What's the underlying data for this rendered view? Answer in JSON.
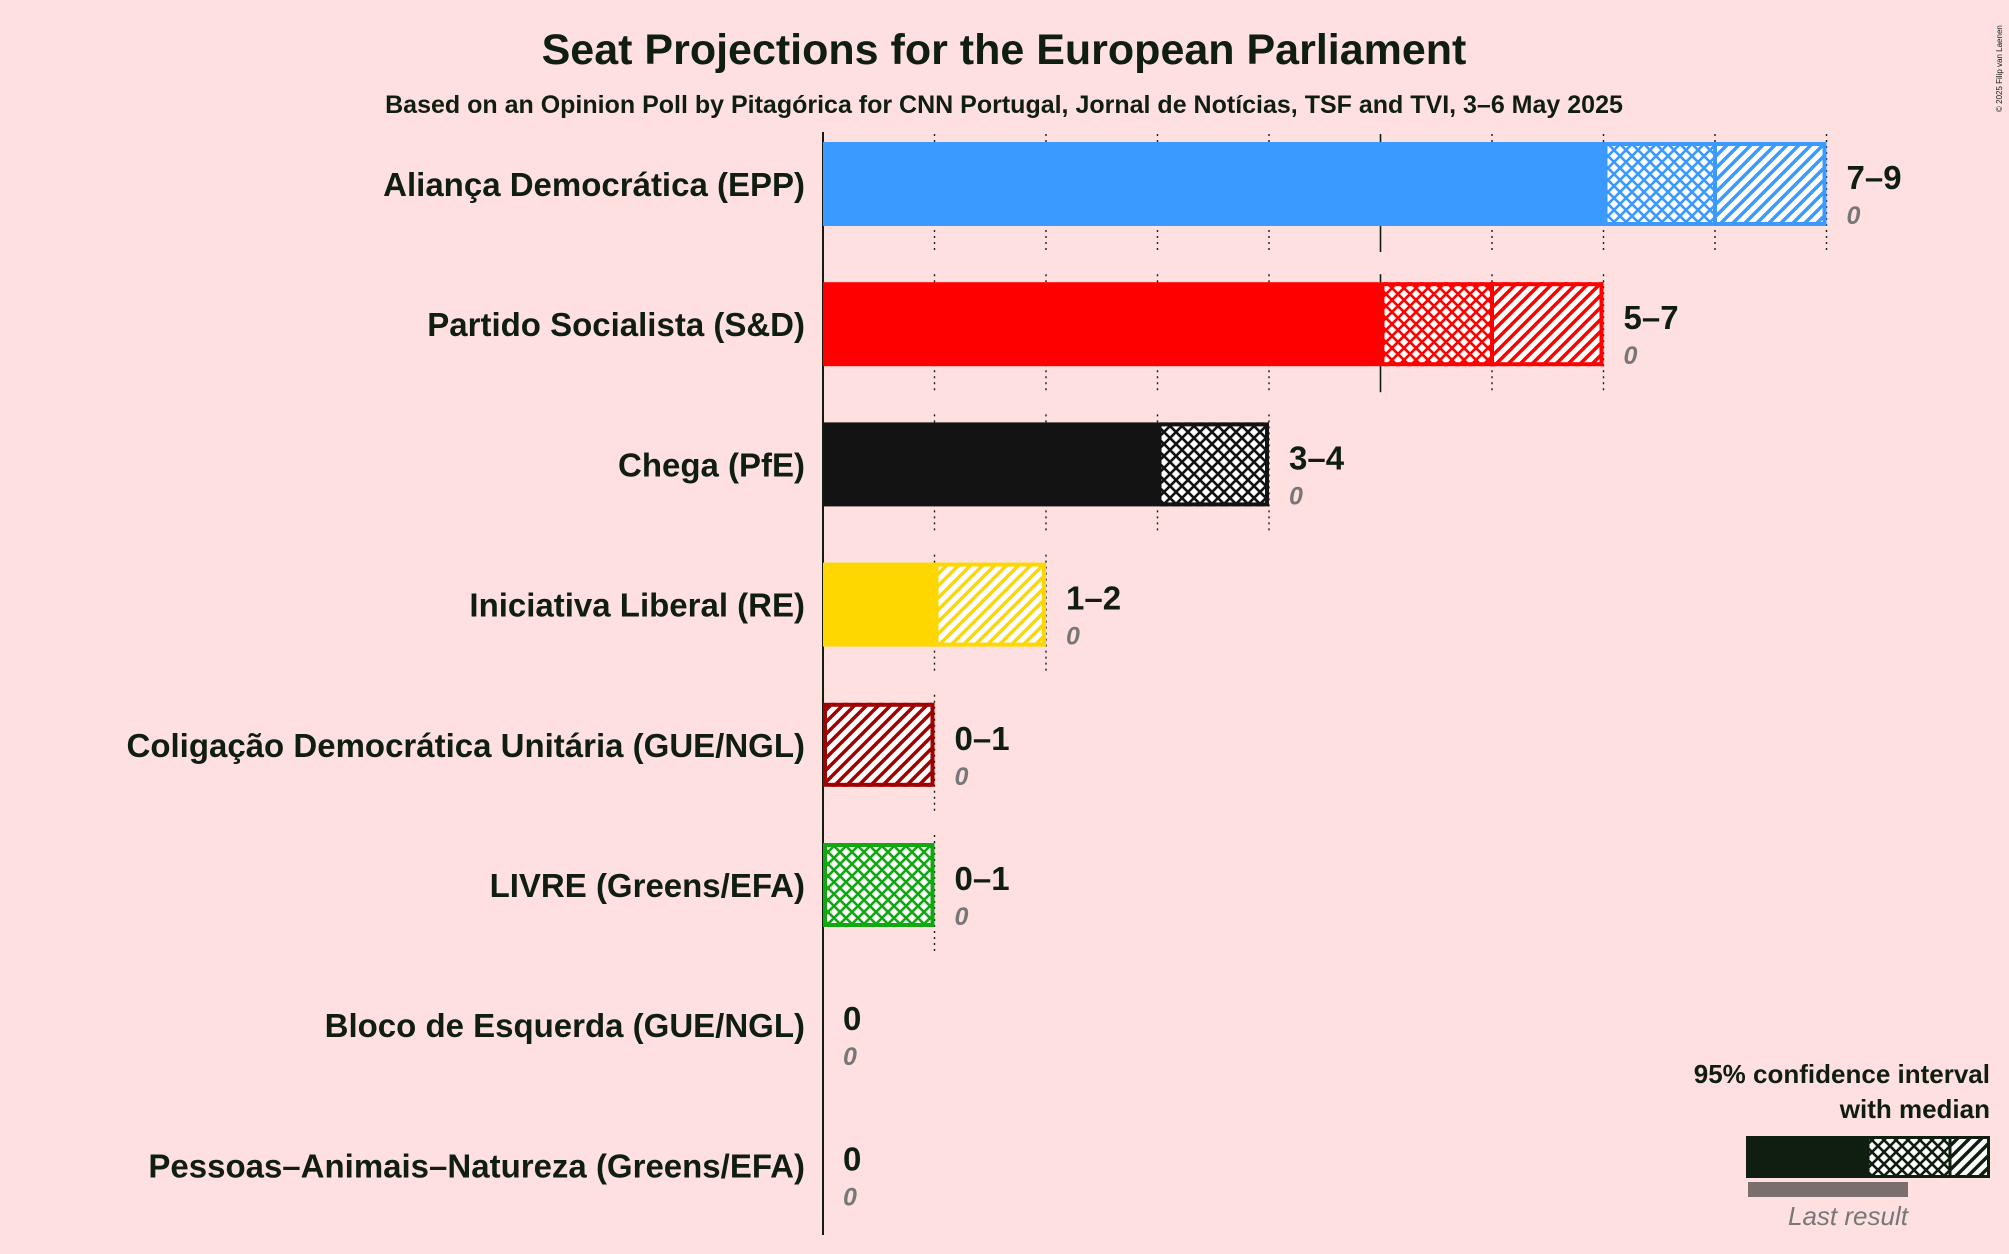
{
  "header": {
    "title": "Seat Projections for the European Parliament",
    "subtitle": "Based on an Opinion Poll by Pitagórica for CNN Portugal, Jornal de Notícias, TSF and TVI, 3–6 May 2025",
    "copyright": "© 2025 Filip van Laenen"
  },
  "legend": {
    "line1": "95% confidence interval",
    "line2": "with median",
    "last_result": "Last result",
    "color": "#0f1e0f"
  },
  "chart_data": {
    "type": "bar",
    "orientation": "horizontal",
    "title": "Seat Projections for the European Parliament",
    "subtitle": "Based on an Opinion Poll by Pitagórica for CNN Portugal, Jornal de Notícias, TSF and TVI, 3–6 May 2025",
    "xlim": [
      0,
      9
    ],
    "grid": true,
    "legend_position": "bottom-right",
    "series": [
      {
        "party": "Aliança Democrática (EPP)",
        "low": 7,
        "median": 8,
        "high": 9,
        "range_label": "7–9",
        "last_result": 0,
        "last_label": "0",
        "color": "#3b9aff"
      },
      {
        "party": "Partido Socialista (S&D)",
        "low": 5,
        "median": 6,
        "high": 7,
        "range_label": "5–7",
        "last_result": 0,
        "last_label": "0",
        "color": "#ff0000"
      },
      {
        "party": "Chega (PfE)",
        "low": 3,
        "median": 4,
        "high": 4,
        "range_label": "3–4",
        "last_result": 0,
        "last_label": "0",
        "color": "#131313"
      },
      {
        "party": "Iniciativa Liberal (RE)",
        "low": 1,
        "median": 1,
        "high": 2,
        "range_label": "1–2",
        "last_result": 0,
        "last_label": "0",
        "color": "#ffd700"
      },
      {
        "party": "Coligação Democrática Unitária (GUE/NGL)",
        "low": 0,
        "median": 0,
        "high": 1,
        "range_label": "0–1",
        "last_result": 0,
        "last_label": "0",
        "color": "#a00000"
      },
      {
        "party": "LIVRE (Greens/EFA)",
        "low": 0,
        "median": 1,
        "high": 1,
        "range_label": "0–1",
        "last_result": 0,
        "last_label": "0",
        "color": "#13a713"
      },
      {
        "party": "Bloco de Esquerda (GUE/NGL)",
        "low": 0,
        "median": 0,
        "high": 0,
        "range_label": "0",
        "last_result": 0,
        "last_label": "0",
        "color": "#c00000"
      },
      {
        "party": "Pessoas–Animais–Natureza (Greens/EFA)",
        "low": 0,
        "median": 0,
        "high": 0,
        "range_label": "0",
        "last_result": 0,
        "last_label": "0",
        "color": "#1a8a1a"
      }
    ]
  }
}
